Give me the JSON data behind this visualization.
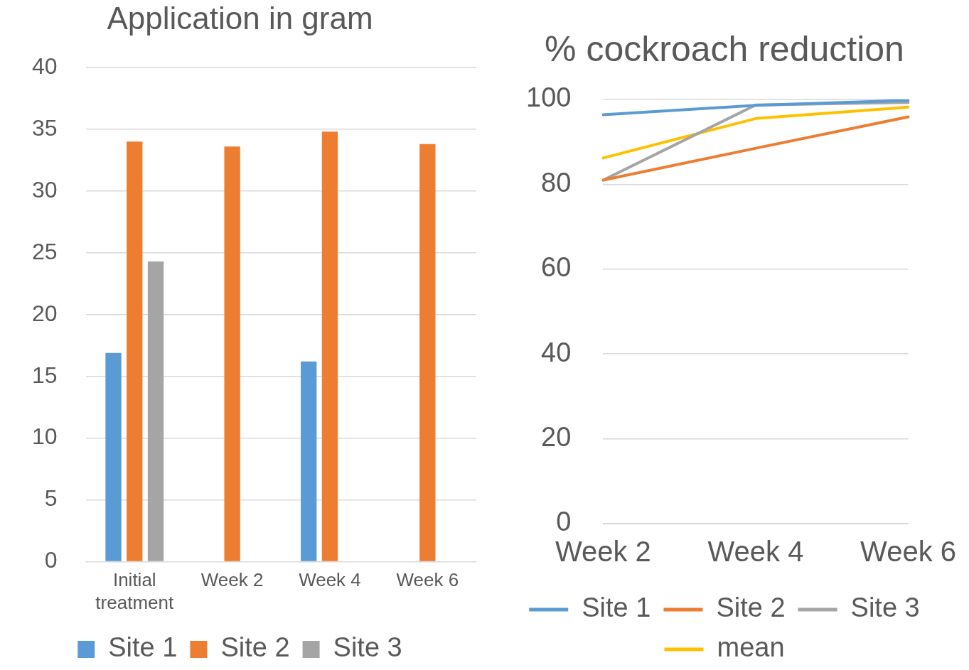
{
  "chart_data": [
    {
      "type": "bar",
      "title": "Application in gram",
      "categories": [
        "Initial treatment",
        "Week 2",
        "Week 4",
        "Week 6"
      ],
      "series": [
        {
          "name": "Site 1",
          "color": "#5b9bd5",
          "values": [
            16.9,
            null,
            16.2,
            null
          ]
        },
        {
          "name": "Site 2",
          "color": "#ed7d31",
          "values": [
            34.0,
            33.6,
            34.8,
            33.8
          ]
        },
        {
          "name": "Site 3",
          "color": "#a5a5a5",
          "values": [
            24.3,
            null,
            null,
            null
          ]
        }
      ],
      "ylim": [
        0,
        40
      ],
      "yticks": [
        0,
        5,
        10,
        15,
        20,
        25,
        30,
        35,
        40
      ],
      "grid": "y",
      "legend": "bottom"
    },
    {
      "type": "line",
      "title": "% cockroach reduction",
      "categories": [
        "Week 2",
        "Week 4",
        "Week 6"
      ],
      "series": [
        {
          "name": "Site 1",
          "color": "#5b9bd5",
          "values": [
            96.4,
            98.6,
            99.8
          ]
        },
        {
          "name": "Site 2",
          "color": "#ed7d31",
          "values": [
            81.0,
            88.5,
            95.9
          ]
        },
        {
          "name": "Site 3",
          "color": "#a5a5a5",
          "values": [
            81.0,
            98.7,
            99.3
          ]
        },
        {
          "name": "mean",
          "color": "#ffc000",
          "values": [
            86.2,
            95.5,
            98.2
          ]
        }
      ],
      "ylim": [
        0,
        100
      ],
      "yticks": [
        0,
        20,
        40,
        60,
        80,
        100
      ],
      "grid": "y",
      "legend": "bottom",
      "marker": "none"
    }
  ]
}
